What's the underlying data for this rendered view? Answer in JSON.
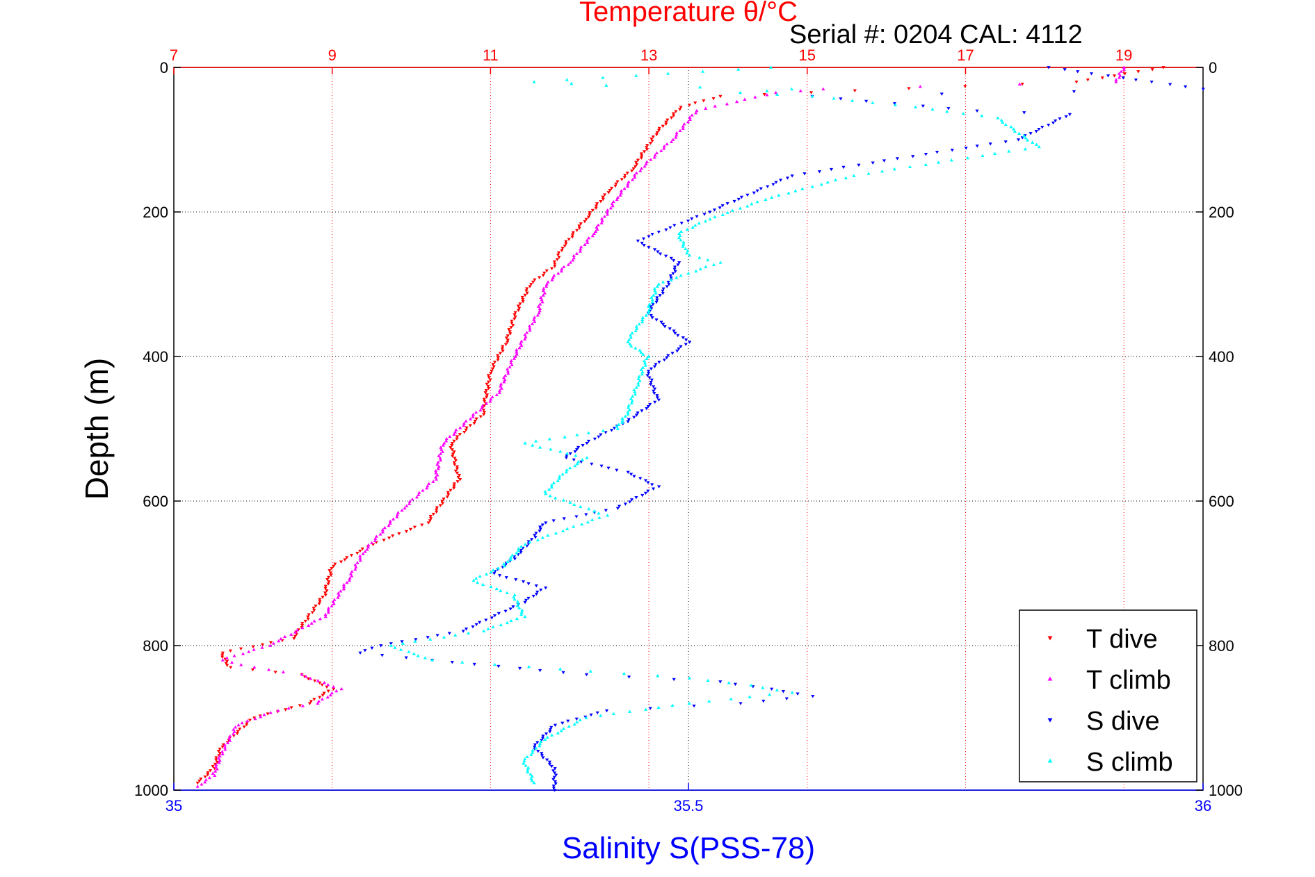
{
  "chart_data": {
    "type": "scatter",
    "title_top": "Temperature θ/°C",
    "xlabel_bottom": "Salinity S(PSS-78)",
    "ylabel": "Depth (m)",
    "annotation": "Serial #: 0204  CAL: 4112",
    "top_axis": {
      "ticks": [
        "7",
        "9",
        "11",
        "13",
        "15",
        "17",
        "19"
      ],
      "range": [
        7,
        20
      ],
      "color": "#ff0000"
    },
    "bottom_axis": {
      "ticks": [
        "35",
        "35.5",
        "36"
      ],
      "range": [
        35,
        36
      ],
      "color": "#0000ff"
    },
    "y_axis": {
      "ticks": [
        "0",
        "200",
        "400",
        "600",
        "800",
        "1000"
      ],
      "range": [
        0,
        1000
      ],
      "reversed": true
    },
    "grid": true,
    "legend_placement": "bottom-right",
    "series": [
      {
        "name": "T dive",
        "axis": "top",
        "color": "#ff0000",
        "marker": "triangle-down",
        "points": [
          [
            19.5,
            0
          ],
          [
            18.4,
            20
          ],
          [
            15.6,
            32
          ],
          [
            13.9,
            40
          ],
          [
            13.4,
            55
          ],
          [
            13.1,
            90
          ],
          [
            12.8,
            140
          ],
          [
            12.5,
            170
          ],
          [
            12.2,
            210
          ],
          [
            11.9,
            250
          ],
          [
            11.8,
            275
          ],
          [
            11.5,
            300
          ],
          [
            11.3,
            345
          ],
          [
            11.2,
            380
          ],
          [
            11.0,
            420
          ],
          [
            10.9,
            480
          ],
          [
            10.5,
            520
          ],
          [
            10.6,
            570
          ],
          [
            10.2,
            630
          ],
          [
            9.5,
            660
          ],
          [
            9.0,
            690
          ],
          [
            8.9,
            730
          ],
          [
            8.5,
            790
          ],
          [
            7.6,
            810
          ],
          [
            7.7,
            830
          ],
          [
            8.6,
            840
          ],
          [
            9.0,
            860
          ],
          [
            8.7,
            880
          ],
          [
            8.0,
            900
          ],
          [
            7.6,
            940
          ],
          [
            7.5,
            970
          ],
          [
            7.3,
            990
          ]
        ]
      },
      {
        "name": "T climb",
        "axis": "top",
        "color": "#ff00ff",
        "marker": "triangle-up",
        "points": [
          [
            19.0,
            0
          ],
          [
            18.9,
            20
          ],
          [
            15.2,
            30
          ],
          [
            14.6,
            35
          ],
          [
            13.6,
            60
          ],
          [
            13.3,
            100
          ],
          [
            12.9,
            140
          ],
          [
            12.6,
            180
          ],
          [
            12.3,
            230
          ],
          [
            12.0,
            270
          ],
          [
            11.7,
            300
          ],
          [
            11.6,
            340
          ],
          [
            11.3,
            400
          ],
          [
            11.1,
            450
          ],
          [
            10.4,
            520
          ],
          [
            10.3,
            570
          ],
          [
            9.9,
            610
          ],
          [
            9.4,
            670
          ],
          [
            9.2,
            710
          ],
          [
            8.9,
            760
          ],
          [
            8.2,
            800
          ],
          [
            7.6,
            820
          ],
          [
            8.0,
            830
          ],
          [
            8.6,
            840
          ],
          [
            9.1,
            860
          ],
          [
            8.8,
            880
          ],
          [
            8.3,
            890
          ],
          [
            7.8,
            910
          ],
          [
            7.6,
            950
          ],
          [
            7.5,
            980
          ],
          [
            7.3,
            995
          ]
        ]
      },
      {
        "name": "S dive",
        "axis": "bottom",
        "color": "#0000ff",
        "marker": "triangle-down",
        "points": [
          [
            35.85,
            0
          ],
          [
            35.95,
            20
          ],
          [
            36.0,
            30
          ],
          [
            35.62,
            40
          ],
          [
            35.7,
            50
          ],
          [
            35.78,
            60
          ],
          [
            35.87,
            65
          ],
          [
            35.82,
            100
          ],
          [
            35.73,
            120
          ],
          [
            35.6,
            150
          ],
          [
            35.52,
            200
          ],
          [
            35.45,
            240
          ],
          [
            35.49,
            270
          ],
          [
            35.48,
            300
          ],
          [
            35.46,
            340
          ],
          [
            35.5,
            380
          ],
          [
            35.46,
            420
          ],
          [
            35.47,
            460
          ],
          [
            35.44,
            490
          ],
          [
            35.4,
            520
          ],
          [
            35.38,
            540
          ],
          [
            35.44,
            560
          ],
          [
            35.47,
            580
          ],
          [
            35.43,
            610
          ],
          [
            35.36,
            630
          ],
          [
            35.35,
            650
          ],
          [
            35.33,
            680
          ],
          [
            35.31,
            700
          ],
          [
            35.36,
            720
          ],
          [
            35.34,
            740
          ],
          [
            35.28,
            780
          ],
          [
            35.2,
            800
          ],
          [
            35.18,
            810
          ],
          [
            35.25,
            820
          ],
          [
            35.4,
            840
          ],
          [
            35.53,
            850
          ],
          [
            35.58,
            860
          ],
          [
            35.62,
            870
          ],
          [
            35.55,
            880
          ],
          [
            35.42,
            890
          ],
          [
            35.37,
            910
          ],
          [
            35.35,
            940
          ],
          [
            35.37,
            970
          ],
          [
            35.37,
            1000
          ]
        ]
      },
      {
        "name": "S climb",
        "axis": "bottom",
        "color": "#00ffff",
        "marker": "triangle-up",
        "points": [
          [
            35.58,
            0
          ],
          [
            35.35,
            20
          ],
          [
            35.42,
            25
          ],
          [
            35.6,
            30
          ],
          [
            35.55,
            35
          ],
          [
            35.62,
            40
          ],
          [
            35.72,
            55
          ],
          [
            35.8,
            70
          ],
          [
            35.84,
            110
          ],
          [
            35.66,
            150
          ],
          [
            35.58,
            180
          ],
          [
            35.52,
            210
          ],
          [
            35.49,
            230
          ],
          [
            35.5,
            260
          ],
          [
            35.53,
            270
          ],
          [
            35.47,
            300
          ],
          [
            35.46,
            340
          ],
          [
            35.44,
            380
          ],
          [
            35.46,
            400
          ],
          [
            35.45,
            440
          ],
          [
            35.44,
            480
          ],
          [
            35.43,
            500
          ],
          [
            35.34,
            520
          ],
          [
            35.4,
            540
          ],
          [
            35.38,
            560
          ],
          [
            35.36,
            590
          ],
          [
            35.42,
            620
          ],
          [
            35.34,
            660
          ],
          [
            35.32,
            690
          ],
          [
            35.29,
            710
          ],
          [
            35.33,
            730
          ],
          [
            35.34,
            760
          ],
          [
            35.3,
            780
          ],
          [
            35.21,
            800
          ],
          [
            35.25,
            820
          ],
          [
            35.5,
            845
          ],
          [
            35.56,
            855
          ],
          [
            35.6,
            865
          ],
          [
            35.5,
            880
          ],
          [
            35.4,
            900
          ],
          [
            35.36,
            930
          ],
          [
            35.34,
            960
          ],
          [
            35.35,
            990
          ]
        ]
      }
    ]
  }
}
